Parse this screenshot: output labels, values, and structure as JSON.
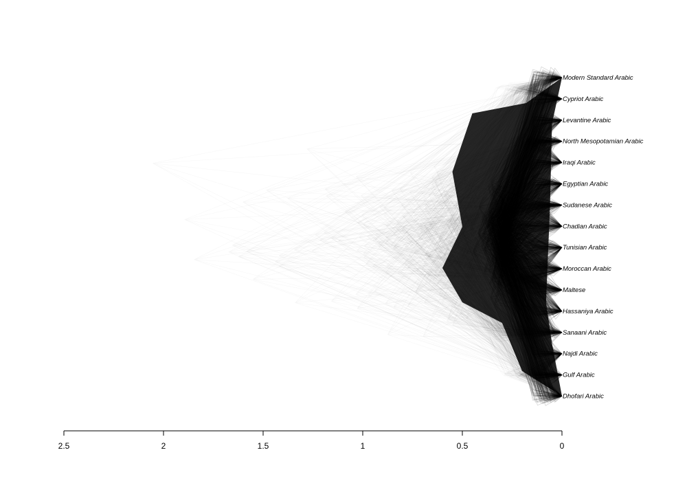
{
  "chart_data": {
    "type": "densitree",
    "taxa": [
      "Modern Standard Arabic",
      "Cypriot Arabic",
      "Levantine Arabic",
      "North Mesopotamian Arabic",
      "Iraqi Arabic",
      "Egyptian Arabic",
      "Sudanese Arabic",
      "Chadian Arabic",
      "Tunisian Arabic",
      "Moroccan Arabic",
      "Maltese",
      "Hassaniya Arabic",
      "Sanaani Arabic",
      "Najdi Arabic",
      "Gulf Arabic",
      "Dhofari Arabic"
    ],
    "x_axis": {
      "ticks": [
        "2.5",
        "2",
        "1.5",
        "1",
        "0.5",
        "0"
      ],
      "tick_values": [
        2.5,
        2,
        1.5,
        1,
        0.5,
        0
      ],
      "range": [
        2.5,
        0
      ],
      "direction": "reversed"
    },
    "colors": {
      "lines": "#000000",
      "background": "#ffffff"
    }
  }
}
